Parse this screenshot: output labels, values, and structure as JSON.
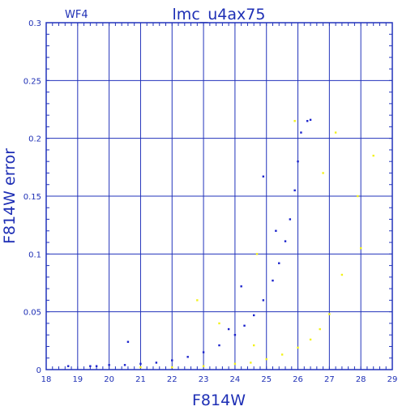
{
  "chart_data": {
    "type": "scatter",
    "title": "lmc_u4ax75",
    "subtitle": "WF4",
    "xlabel": "F814W",
    "ylabel": "F814W error",
    "xlim": [
      18,
      29
    ],
    "ylim": [
      0,
      0.3
    ],
    "x_ticks": [
      "18",
      "19",
      "20",
      "21",
      "22",
      "23",
      "24",
      "25",
      "26",
      "27",
      "28",
      "29"
    ],
    "y_ticks": [
      "0",
      "0.05",
      "0.1",
      "0.15",
      "0.2",
      "0.25",
      "0.3"
    ],
    "x_tick_values": [
      18,
      19,
      20,
      21,
      22,
      23,
      24,
      25,
      26,
      27,
      28,
      29
    ],
    "y_tick_values": [
      0,
      0.05,
      0.1,
      0.15,
      0.2,
      0.25,
      0.3
    ],
    "grid": true,
    "colors": {
      "blue": "#1a22cc",
      "yellow": "#f2f21a",
      "axis": "#1e2fb5",
      "frame": "#2233bb"
    },
    "series": [
      {
        "color": "#1a22cc",
        "points": [
          [
            18.7,
            0.003
          ],
          [
            19.4,
            0.003
          ],
          [
            19.6,
            0.003
          ],
          [
            20.6,
            0.024
          ],
          [
            20.0,
            0.004
          ],
          [
            20.5,
            0.004
          ],
          [
            21.0,
            0.005
          ],
          [
            21.5,
            0.006
          ],
          [
            22.0,
            0.008
          ],
          [
            22.5,
            0.011
          ],
          [
            23.0,
            0.015
          ],
          [
            23.5,
            0.021
          ],
          [
            24.0,
            0.03
          ],
          [
            24.3,
            0.038
          ],
          [
            24.6,
            0.047
          ],
          [
            24.9,
            0.06
          ],
          [
            25.2,
            0.077
          ],
          [
            25.4,
            0.092
          ],
          [
            25.6,
            0.111
          ],
          [
            25.75,
            0.13
          ],
          [
            25.9,
            0.155
          ],
          [
            26.0,
            0.18
          ],
          [
            26.1,
            0.205
          ],
          [
            26.3,
            0.215
          ],
          [
            24.9,
            0.167
          ],
          [
            24.2,
            0.072
          ],
          [
            23.8,
            0.035
          ],
          [
            25.3,
            0.12
          ],
          [
            26.4,
            0.216
          ]
        ]
      },
      {
        "color": "#f2f21a",
        "points": [
          [
            21.0,
            0.002
          ],
          [
            22.0,
            0.002
          ],
          [
            23.0,
            0.003
          ],
          [
            24.0,
            0.005
          ],
          [
            24.5,
            0.006
          ],
          [
            25.0,
            0.009
          ],
          [
            25.5,
            0.013
          ],
          [
            26.0,
            0.019
          ],
          [
            26.4,
            0.026
          ],
          [
            26.7,
            0.035
          ],
          [
            27.0,
            0.048
          ],
          [
            28.4,
            0.185
          ],
          [
            28.0,
            0.105
          ],
          [
            27.9,
            0.15
          ],
          [
            27.2,
            0.205
          ],
          [
            24.7,
            0.1
          ],
          [
            23.5,
            0.04
          ],
          [
            22.8,
            0.06
          ],
          [
            24.6,
            0.021
          ],
          [
            27.4,
            0.082
          ],
          [
            26.8,
            0.17
          ],
          [
            25.9,
            0.215
          ]
        ]
      }
    ]
  }
}
